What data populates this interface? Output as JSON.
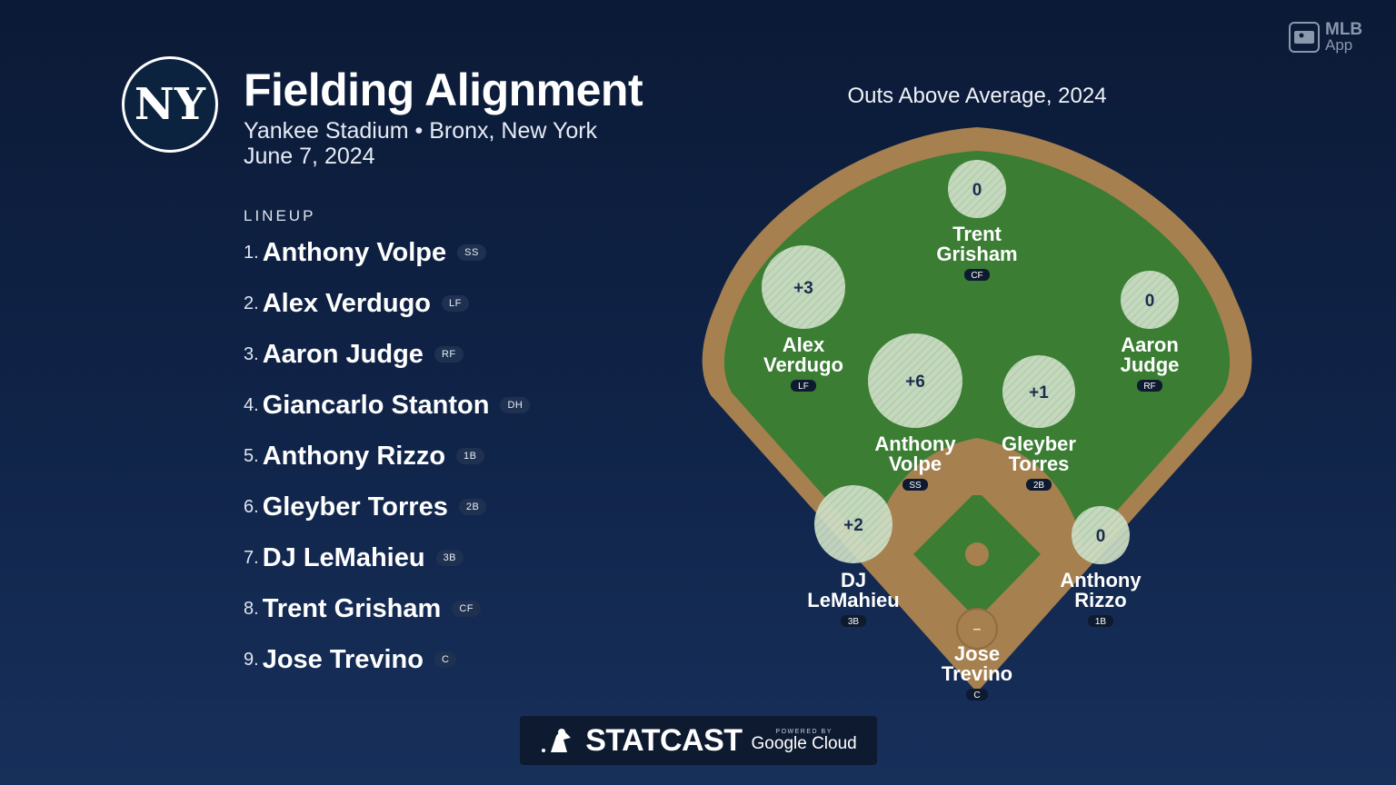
{
  "header": {
    "title": "Fielding Alignment",
    "subtitle": "Yankee Stadium • Bronx, New York",
    "date": "June 7, 2024",
    "team_logo_text": "NY"
  },
  "lineup": {
    "label": "LINEUP",
    "items": [
      {
        "num": "1.",
        "name": "Anthony Volpe",
        "pos": "SS"
      },
      {
        "num": "2.",
        "name": "Alex Verdugo",
        "pos": "LF"
      },
      {
        "num": "3.",
        "name": "Aaron Judge",
        "pos": "RF"
      },
      {
        "num": "4.",
        "name": "Giancarlo Stanton",
        "pos": "DH"
      },
      {
        "num": "5.",
        "name": "Anthony Rizzo",
        "pos": "1B"
      },
      {
        "num": "6.",
        "name": "Gleyber Torres",
        "pos": "2B"
      },
      {
        "num": "7.",
        "name": "DJ LeMahieu",
        "pos": "3B"
      },
      {
        "num": "8.",
        "name": "Trent Grisham",
        "pos": "CF"
      },
      {
        "num": "9.",
        "name": "Jose Trevino",
        "pos": "C"
      }
    ]
  },
  "field": {
    "title": "Outs Above Average, 2024",
    "players": [
      {
        "value": "0",
        "first": "Trent",
        "last": "Grisham",
        "pos": "CF"
      },
      {
        "value": "+3",
        "first": "Alex",
        "last": "Verdugo",
        "pos": "LF"
      },
      {
        "value": "0",
        "first": "Aaron",
        "last": "Judge",
        "pos": "RF"
      },
      {
        "value": "+6",
        "first": "Anthony",
        "last": "Volpe",
        "pos": "SS"
      },
      {
        "value": "+1",
        "first": "Gleyber",
        "last": "Torres",
        "pos": "2B"
      },
      {
        "value": "+2",
        "first": "DJ",
        "last": "LeMahieu",
        "pos": "3B"
      },
      {
        "value": "0",
        "first": "Anthony",
        "last": "Rizzo",
        "pos": "1B"
      },
      {
        "value": "–",
        "first": "Jose",
        "last": "Trevino",
        "pos": "C"
      }
    ]
  },
  "branding": {
    "mlb_app_line1": "MLB",
    "mlb_app_line2": "App",
    "statcast": "STATCAST",
    "powered_by": "POWERED BY",
    "google_cloud": "Google Cloud"
  },
  "colors": {
    "background": "#0b1a36",
    "grass": "#3a7d33",
    "dirt": "#a6804f",
    "bubble": "#cfe0c8"
  }
}
